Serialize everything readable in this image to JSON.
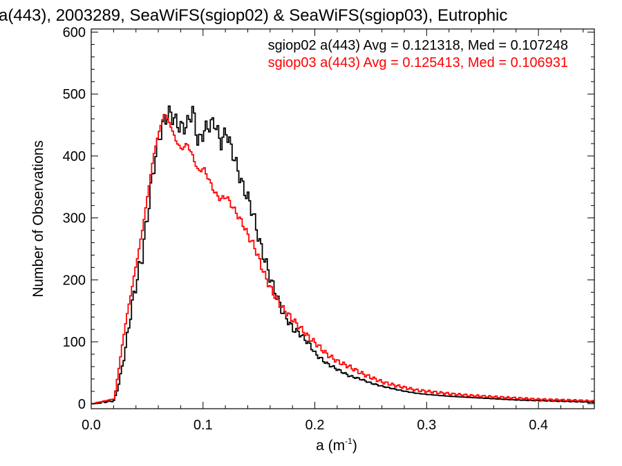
{
  "chart_data": {
    "type": "line",
    "title": "a(443), 2003289, SeaWiFS(sgiop02) & SeaWiFS(sgiop03), Eutrophic",
    "xlabel_base": "a (m",
    "xlabel_sup": "-1",
    "xlabel_close": ")",
    "ylabel": "Number of Observations",
    "xlim": [
      0.0,
      0.45
    ],
    "ylim": [
      -8,
      605
    ],
    "x_ticks": [
      {
        "value": 0.0,
        "label": "0.0"
      },
      {
        "value": 0.1,
        "label": "0.1"
      },
      {
        "value": 0.2,
        "label": "0.2"
      },
      {
        "value": 0.3,
        "label": "0.3"
      },
      {
        "value": 0.4,
        "label": "0.4"
      }
    ],
    "y_ticks": [
      {
        "value": 0,
        "label": "0"
      },
      {
        "value": 100,
        "label": "100"
      },
      {
        "value": 200,
        "label": "200"
      },
      {
        "value": 300,
        "label": "300"
      },
      {
        "value": 400,
        "label": "400"
      },
      {
        "value": 500,
        "label": "500"
      },
      {
        "value": 600,
        "label": "600"
      }
    ],
    "grid": false,
    "legend_position": "top-right",
    "series": [
      {
        "name": "sgiop02",
        "color": "#000000",
        "legend": "sgiop02 a(443) Avg = 0.121318, Med = 0.107248",
        "x": [
          0.0,
          0.02,
          0.025,
          0.03,
          0.035,
          0.04,
          0.045,
          0.05,
          0.055,
          0.06,
          0.065,
          0.07,
          0.075,
          0.08,
          0.085,
          0.09,
          0.095,
          0.1,
          0.105,
          0.11,
          0.115,
          0.12,
          0.125,
          0.13,
          0.135,
          0.14,
          0.145,
          0.15,
          0.155,
          0.16,
          0.165,
          0.17,
          0.175,
          0.18,
          0.185,
          0.19,
          0.195,
          0.2,
          0.21,
          0.22,
          0.23,
          0.24,
          0.25,
          0.26,
          0.27,
          0.28,
          0.29,
          0.3,
          0.32,
          0.34,
          0.36,
          0.38,
          0.4,
          0.42,
          0.44,
          0.45
        ],
        "y": [
          0,
          5,
          40,
          90,
          150,
          200,
          240,
          310,
          380,
          430,
          460,
          470,
          455,
          445,
          450,
          475,
          420,
          440,
          450,
          455,
          420,
          440,
          410,
          380,
          350,
          330,
          300,
          260,
          230,
          200,
          175,
          150,
          135,
          120,
          115,
          105,
          95,
          80,
          65,
          55,
          45,
          40,
          33,
          28,
          24,
          20,
          17,
          15,
          12,
          10,
          8,
          6,
          5,
          4,
          3,
          2
        ]
      },
      {
        "name": "sgiop03",
        "color": "#ff0000",
        "legend": "sgiop03 a(443) Avg = 0.125413, Med = 0.106931",
        "x": [
          0.0,
          0.02,
          0.025,
          0.03,
          0.035,
          0.04,
          0.045,
          0.05,
          0.055,
          0.06,
          0.065,
          0.07,
          0.075,
          0.08,
          0.085,
          0.09,
          0.095,
          0.1,
          0.105,
          0.11,
          0.115,
          0.12,
          0.125,
          0.13,
          0.135,
          0.14,
          0.145,
          0.15,
          0.155,
          0.16,
          0.165,
          0.17,
          0.175,
          0.18,
          0.185,
          0.19,
          0.195,
          0.2,
          0.21,
          0.22,
          0.23,
          0.24,
          0.25,
          0.26,
          0.27,
          0.28,
          0.29,
          0.3,
          0.32,
          0.34,
          0.36,
          0.38,
          0.4,
          0.42,
          0.44,
          0.45
        ],
        "y": [
          0,
          8,
          70,
          130,
          180,
          230,
          280,
          340,
          400,
          440,
          470,
          450,
          425,
          410,
          420,
          400,
          375,
          380,
          360,
          340,
          330,
          335,
          320,
          305,
          290,
          270,
          255,
          230,
          205,
          185,
          170,
          155,
          145,
          135,
          125,
          115,
          105,
          98,
          80,
          68,
          60,
          50,
          42,
          35,
          30,
          26,
          22,
          20,
          16,
          13,
          11,
          9,
          7,
          6,
          5,
          4
        ]
      }
    ]
  }
}
